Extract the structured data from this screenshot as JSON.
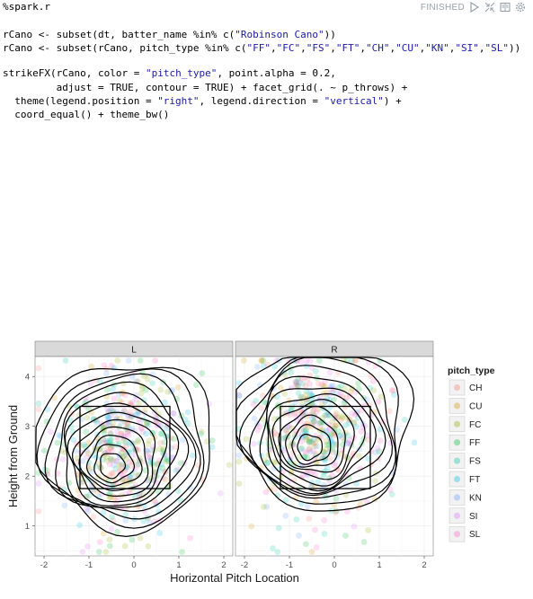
{
  "paragraph": {
    "status": "FINISHED",
    "icons": [
      "play-icon",
      "collapse-icon",
      "book-icon",
      "settings-icon"
    ],
    "code_lines": [
      "%spark.r",
      "",
      "rCano <- subset(dt, batter_name %in% c(\"Robinson Cano\"))",
      "rCano <- subset(rCano, pitch_type %in% c(\"FF\",\"FC\",\"FS\",\"FT\",\"CH\",\"CU\",\"KN\",\"SI\",\"SL\"))",
      "",
      "strikeFX(rCano, color = \"pitch_type\", point.alpha = 0.2,",
      "         adjust = TRUE, contour = TRUE) + facet_grid(. ~ p_throws) +",
      "  theme(legend.position = \"right\", legend.direction = \"vertical\") +",
      "  coord_equal() + theme_bw()"
    ]
  },
  "chart_data": {
    "type": "scatter",
    "facet_labels": [
      "L",
      "R"
    ],
    "xlabel": "Horizontal Pitch Location",
    "ylabel": "Height from Ground",
    "x_ticks": [
      "-2",
      "-1",
      "0",
      "1",
      "2"
    ],
    "y_ticks": [
      "1",
      "2",
      "3",
      "4"
    ],
    "xlim": [
      -2.2,
      2.2
    ],
    "ylim": [
      0.4,
      4.4
    ],
    "grid": true,
    "legend_position": "right",
    "legend_title": "pitch_type",
    "legend": [
      {
        "label": "CH",
        "color": "#f8766d"
      },
      {
        "label": "CU",
        "color": "#d39200"
      },
      {
        "label": "FC",
        "color": "#93aa00"
      },
      {
        "label": "FF",
        "color": "#00ba38"
      },
      {
        "label": "FS",
        "color": "#00c19f"
      },
      {
        "label": "FT",
        "color": "#00b9e3"
      },
      {
        "label": "KN",
        "color": "#619cff"
      },
      {
        "label": "SI",
        "color": "#db72fb"
      },
      {
        "label": "SL",
        "color": "#ff61c3"
      }
    ],
    "strike_zone": {
      "x": [
        -1.2,
        0.8
      ],
      "y": [
        1.75,
        3.4
      ]
    },
    "density_peaks": [
      {
        "panel": "L",
        "x": -0.52,
        "y": 2.18
      },
      {
        "panel": "R",
        "x": -0.58,
        "y": 2.55
      }
    ]
  }
}
